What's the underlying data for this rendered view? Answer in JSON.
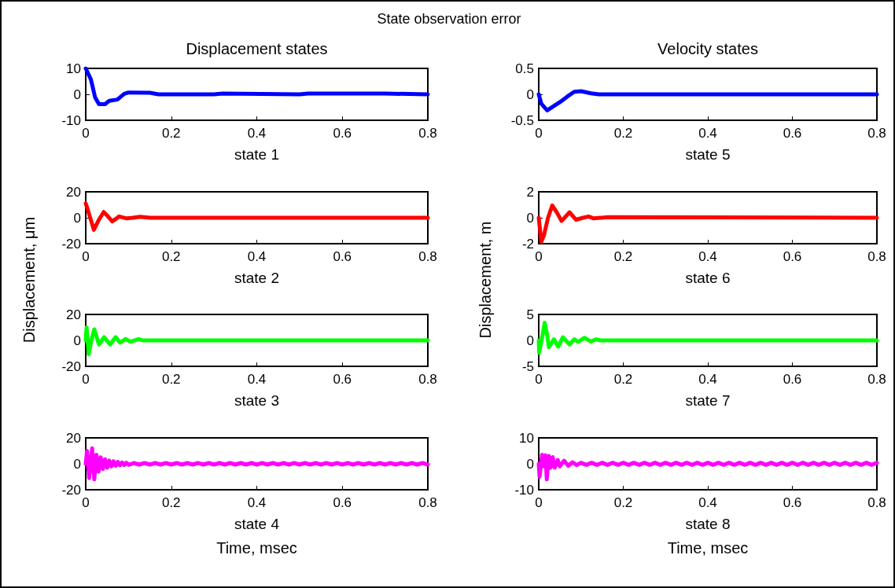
{
  "chart_data": [
    {
      "type": "line",
      "title": "Displacement states",
      "annotations": [
        "State observation error"
      ],
      "xlabel": "state 1",
      "xlim": [
        0,
        0.8
      ],
      "xticks": [
        0,
        0.2,
        0.4,
        0.6,
        0.8
      ],
      "ylim": [
        -10,
        10
      ],
      "yticks": [
        -10,
        0,
        10
      ],
      "x": [
        0,
        0.012,
        0.022,
        0.031,
        0.045,
        0.055,
        0.074,
        0.09,
        0.1,
        0.15,
        0.17,
        0.3,
        0.32,
        0.5,
        0.52,
        0.7,
        0.8
      ],
      "series": [
        {
          "color": "#0000ff",
          "values": [
            10,
            5.8,
            -1.2,
            -3.8,
            -3.8,
            -2.5,
            -2,
            0.2,
            0.7,
            0.6,
            0,
            0,
            0.3,
            0,
            0.3,
            0.3,
            0
          ]
        }
      ]
    },
    {
      "type": "line",
      "xlabel": "state 2",
      "ylabel": "Displacement, μm",
      "xlim": [
        0,
        0.8
      ],
      "xticks": [
        0,
        0.2,
        0.4,
        0.6,
        0.8
      ],
      "ylim": [
        -20,
        20
      ],
      "yticks": [
        -20,
        0,
        20
      ],
      "x": [
        0,
        0.005,
        0.019,
        0.03,
        0.042,
        0.052,
        0.062,
        0.07,
        0.078,
        0.096,
        0.11,
        0.127,
        0.15,
        0.8
      ],
      "series": [
        {
          "color": "#ff0000",
          "values": [
            11,
            6,
            -9.3,
            -2,
            4.4,
            1,
            -2.8,
            -1,
            1,
            -0.5,
            0,
            0.8,
            0,
            0
          ]
        }
      ]
    },
    {
      "type": "line",
      "xlabel": "state 3",
      "xlim": [
        0,
        0.8
      ],
      "xticks": [
        0,
        0.2,
        0.4,
        0.6,
        0.8
      ],
      "ylim": [
        -20,
        20
      ],
      "yticks": [
        -20,
        0,
        20
      ],
      "x": [
        0,
        0.002,
        0.007,
        0.013,
        0.02,
        0.031,
        0.043,
        0.057,
        0.07,
        0.08,
        0.093,
        0.105,
        0.124,
        0.133,
        0.8
      ],
      "series": [
        {
          "color": "#00ff00",
          "values": [
            0,
            10,
            -10.7,
            0,
            8.5,
            -3.2,
            2.5,
            -3.2,
            2.5,
            -1.7,
            1,
            -1,
            1,
            0,
            0
          ]
        }
      ]
    },
    {
      "type": "line",
      "xlabel": "state 4",
      "annotations": [
        "Time, msec"
      ],
      "xlim": [
        0,
        0.8
      ],
      "xticks": [
        0,
        0.2,
        0.4,
        0.6,
        0.8
      ],
      "ylim": [
        -20,
        20
      ],
      "yticks": [
        -20,
        0,
        20
      ],
      "x": [
        0,
        0.003,
        0.008,
        0.015,
        0.02,
        0.025,
        0.03,
        0.035,
        0.04,
        0.045,
        0.05,
        0.055,
        0.06,
        0.065,
        0.07,
        0.075,
        0.08,
        0.085,
        0.09,
        0.095,
        0.1,
        0.1125,
        0.125,
        0.1375,
        0.15,
        0.1625,
        0.175,
        0.1875,
        0.2,
        0.2125,
        0.225,
        0.2375,
        0.25,
        0.2625,
        0.275,
        0.2875,
        0.3,
        0.3125,
        0.325,
        0.3375,
        0.35,
        0.3625,
        0.375,
        0.3875,
        0.4,
        0.4125,
        0.425,
        0.4375,
        0.45,
        0.4625,
        0.475,
        0.4875,
        0.5,
        0.5125,
        0.525,
        0.5375,
        0.55,
        0.5625,
        0.575,
        0.5875,
        0.6,
        0.6125,
        0.625,
        0.6375,
        0.65,
        0.6625,
        0.675,
        0.6875,
        0.7,
        0.7125,
        0.725,
        0.7375,
        0.75,
        0.7625,
        0.775,
        0.7875,
        0.8
      ],
      "series": [
        {
          "color": "#ff00ff",
          "values": [
            0,
            10,
            -11,
            12,
            -12,
            7,
            -6,
            5,
            -4,
            3.5,
            -3,
            2.5,
            -2,
            2,
            -1.5,
            1.5,
            -1.2,
            1,
            -1,
            0.8,
            -0.8,
            0.6,
            -0.6,
            0.6,
            -0.6,
            0.6,
            -0.6,
            0.6,
            -0.6,
            0.6,
            -0.6,
            0.6,
            -0.6,
            0.6,
            -0.6,
            0.6,
            -0.6,
            0.6,
            -0.6,
            0.6,
            -0.6,
            0.6,
            -0.6,
            0.6,
            -0.6,
            0.6,
            -0.6,
            0.6,
            -0.6,
            0.6,
            -0.6,
            0.6,
            -0.6,
            0.6,
            -0.6,
            0.6,
            -0.6,
            0.6,
            -0.6,
            0.6,
            -0.6,
            0.6,
            -0.6,
            0.6,
            -0.6,
            0.6,
            -0.6,
            0.6,
            -0.6,
            0.6,
            -0.6,
            0.6,
            -0.6,
            0.6,
            -0.6,
            0.6,
            -0.6
          ]
        }
      ]
    },
    {
      "type": "line",
      "title": "Velocity states",
      "xlabel": "state 5",
      "xlim": [
        0,
        0.8
      ],
      "xticks": [
        0,
        0.2,
        0.4,
        0.6,
        0.8
      ],
      "ylim": [
        -0.5,
        0.5
      ],
      "yticks": [
        -0.5,
        0,
        0.5
      ],
      "x": [
        0,
        0.006,
        0.02,
        0.05,
        0.068,
        0.084,
        0.1,
        0.124,
        0.142,
        0.8
      ],
      "series": [
        {
          "color": "#0000ff",
          "values": [
            0,
            -0.18,
            -0.31,
            -0.15,
            -0.04,
            0.05,
            0.06,
            0.02,
            0,
            0
          ]
        }
      ]
    },
    {
      "type": "line",
      "xlabel": "state 6",
      "ylabel": "Displacement, m",
      "xlim": [
        0,
        0.8
      ],
      "xticks": [
        0,
        0.2,
        0.4,
        0.6,
        0.8
      ],
      "ylim": [
        -2,
        2
      ],
      "yticks": [
        -2,
        0,
        2
      ],
      "x": [
        0,
        0.006,
        0.012,
        0.022,
        0.032,
        0.043,
        0.054,
        0.073,
        0.088,
        0.105,
        0.118,
        0.13,
        0.164,
        0.8
      ],
      "series": [
        {
          "color": "#ff0000",
          "values": [
            0,
            -1.85,
            -1.4,
            0,
            0.95,
            0.4,
            -0.25,
            0.42,
            -0.15,
            0,
            0.1,
            -0.05,
            0.05,
            0
          ]
        }
      ]
    },
    {
      "type": "line",
      "xlabel": "state 7",
      "xlim": [
        0,
        0.8
      ],
      "xticks": [
        0,
        0.2,
        0.4,
        0.6,
        0.8
      ],
      "ylim": [
        -5,
        5
      ],
      "yticks": [
        -5,
        0,
        5
      ],
      "x": [
        0,
        0.001,
        0.009,
        0.014,
        0.02,
        0.024,
        0.036,
        0.046,
        0.057,
        0.073,
        0.084,
        0.093,
        0.108,
        0.123,
        0.136,
        0.145,
        0.8
      ],
      "series": [
        {
          "color": "#00ff00",
          "values": [
            0,
            -2.4,
            1,
            3.4,
            1,
            -1.3,
            0.2,
            -1.2,
            0.6,
            -0.8,
            0.2,
            -0.3,
            0.5,
            -0.2,
            0.2,
            0,
            0
          ]
        }
      ]
    },
    {
      "type": "line",
      "xlabel": "state 8",
      "annotations": [
        "Time, msec"
      ],
      "xlim": [
        0,
        0.8
      ],
      "xticks": [
        0,
        0.2,
        0.4,
        0.6,
        0.8
      ],
      "ylim": [
        -10,
        10
      ],
      "yticks": [
        -10,
        0,
        10
      ],
      "x": [
        0,
        0.002,
        0.008,
        0.012,
        0.016,
        0.019,
        0.024,
        0.028,
        0.033,
        0.038,
        0.045,
        0.05,
        0.06,
        0.07,
        0.08,
        0.09,
        0.1,
        0.1125,
        0.125,
        0.1375,
        0.15,
        0.1625,
        0.175,
        0.1875,
        0.2,
        0.2125,
        0.225,
        0.2375,
        0.25,
        0.2625,
        0.275,
        0.2875,
        0.3,
        0.3125,
        0.325,
        0.3375,
        0.35,
        0.3625,
        0.375,
        0.3875,
        0.4,
        0.4125,
        0.425,
        0.4375,
        0.45,
        0.4625,
        0.475,
        0.4875,
        0.5,
        0.5125,
        0.525,
        0.5375,
        0.55,
        0.5625,
        0.575,
        0.5875,
        0.6,
        0.6125,
        0.625,
        0.6375,
        0.65,
        0.6625,
        0.675,
        0.6875,
        0.7,
        0.7125,
        0.725,
        0.7375,
        0.75,
        0.7625,
        0.775,
        0.7875,
        0.8
      ],
      "series": [
        {
          "color": "#ff00ff",
          "values": [
            0,
            -5,
            3.5,
            -1,
            3.3,
            -6,
            3,
            -1.5,
            2.6,
            -1.5,
            1.5,
            -1,
            1.2,
            -0.8,
            0.6,
            -0.5,
            0.4,
            -0.4,
            0.4,
            -0.4,
            0.4,
            -0.4,
            0.4,
            -0.4,
            0.4,
            -0.4,
            0.4,
            -0.4,
            0.4,
            -0.4,
            0.4,
            -0.4,
            0.4,
            -0.4,
            0.4,
            -0.4,
            0.4,
            -0.4,
            0.4,
            -0.4,
            0.4,
            -0.4,
            0.4,
            -0.4,
            0.4,
            -0.4,
            0.4,
            -0.4,
            0.4,
            -0.4,
            0.4,
            -0.4,
            0.4,
            -0.4,
            0.4,
            -0.4,
            0.4,
            -0.4,
            0.4,
            -0.4,
            0.4,
            -0.4,
            0.4,
            -0.4,
            0.4,
            -0.4,
            0.4,
            -0.4,
            0.4,
            -0.4,
            0.4,
            -0.4,
            0.4
          ]
        }
      ]
    }
  ]
}
